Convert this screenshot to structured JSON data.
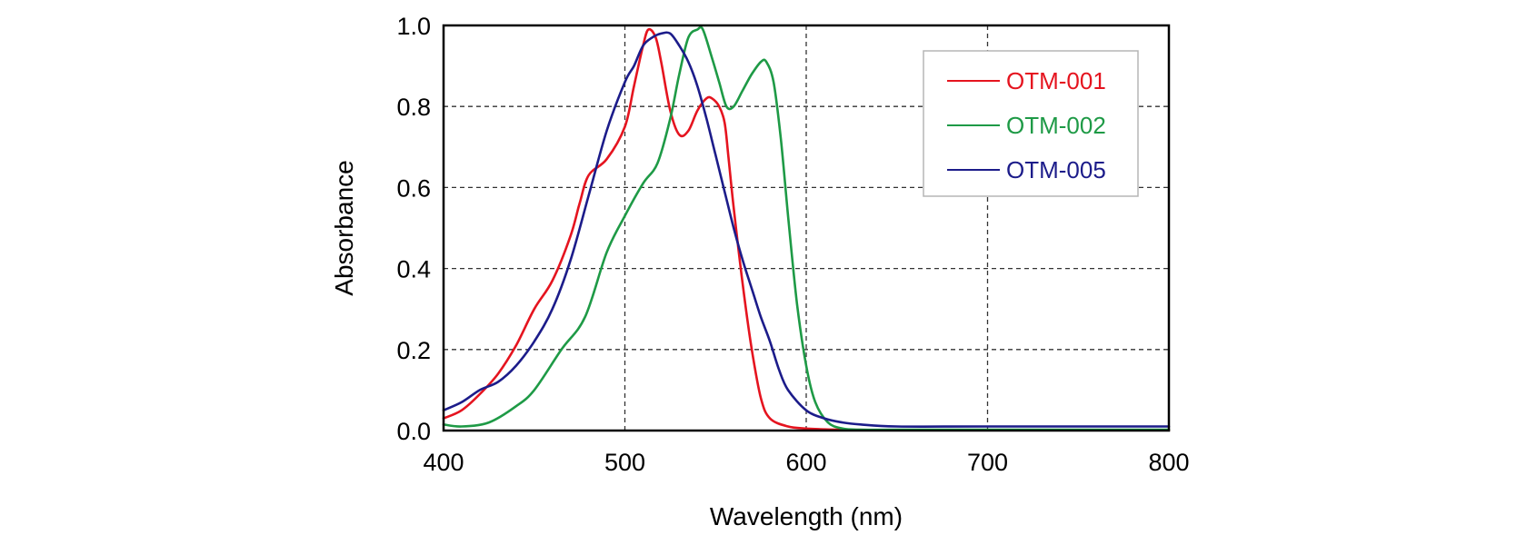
{
  "chart_data": {
    "type": "line",
    "xlabel": "Wavelength (nm)",
    "ylabel": "Absorbance",
    "xlim": [
      400,
      800
    ],
    "ylim": [
      0.0,
      1.0
    ],
    "xticks": [
      400,
      500,
      600,
      700,
      800
    ],
    "yticks": [
      0.0,
      0.2,
      0.4,
      0.6,
      0.8,
      1.0
    ],
    "xtick_labels": [
      "400",
      "500",
      "600",
      "700",
      "800"
    ],
    "ytick_labels": [
      "0.0",
      "0.2",
      "0.4",
      "0.6",
      "0.8",
      "1.0"
    ],
    "grid": true,
    "legend_position": "top-right",
    "series": [
      {
        "name": "OTM-001",
        "color": "#e5141f",
        "x": [
          400,
          410,
          420,
          430,
          440,
          450,
          460,
          470,
          475,
          480,
          490,
          500,
          505,
          510,
          513,
          517,
          520,
          525,
          530,
          535,
          540,
          545,
          548,
          552,
          555,
          557,
          560,
          565,
          570,
          575,
          580,
          590,
          600,
          610,
          620,
          650,
          700,
          800
        ],
        "y": [
          0.03,
          0.05,
          0.09,
          0.14,
          0.21,
          0.3,
          0.37,
          0.48,
          0.56,
          0.63,
          0.67,
          0.75,
          0.85,
          0.95,
          0.99,
          0.97,
          0.91,
          0.79,
          0.73,
          0.74,
          0.79,
          0.82,
          0.82,
          0.8,
          0.76,
          0.68,
          0.55,
          0.36,
          0.2,
          0.08,
          0.03,
          0.01,
          0.005,
          0.003,
          0.002,
          0.001,
          0.001,
          0.001
        ]
      },
      {
        "name": "OTM-002",
        "color": "#1e9a46",
        "x": [
          400,
          410,
          425,
          440,
          450,
          465,
          478,
          490,
          500,
          510,
          518,
          525,
          530,
          535,
          540,
          543,
          548,
          552,
          556,
          560,
          565,
          570,
          575,
          578,
          582,
          586,
          590,
          595,
          600,
          605,
          612,
          620,
          630,
          650,
          700,
          800
        ],
        "y": [
          0.015,
          0.01,
          0.02,
          0.06,
          0.1,
          0.2,
          0.28,
          0.44,
          0.53,
          0.61,
          0.66,
          0.77,
          0.88,
          0.97,
          0.99,
          0.99,
          0.92,
          0.86,
          0.8,
          0.8,
          0.84,
          0.88,
          0.91,
          0.91,
          0.86,
          0.72,
          0.53,
          0.31,
          0.16,
          0.07,
          0.02,
          0.005,
          0.002,
          0.002,
          0.002,
          0.002
        ]
      },
      {
        "name": "OTM-005",
        "color": "#1c1c8a",
        "x": [
          400,
          410,
          420,
          430,
          440,
          450,
          460,
          470,
          480,
          490,
          500,
          505,
          510,
          515,
          520,
          525,
          530,
          535,
          540,
          545,
          550,
          555,
          560,
          565,
          570,
          575,
          580,
          585,
          590,
          600,
          610,
          620,
          630,
          650,
          700,
          800
        ],
        "y": [
          0.05,
          0.07,
          0.1,
          0.12,
          0.16,
          0.22,
          0.3,
          0.42,
          0.58,
          0.74,
          0.86,
          0.9,
          0.95,
          0.97,
          0.98,
          0.98,
          0.95,
          0.91,
          0.85,
          0.77,
          0.68,
          0.59,
          0.5,
          0.42,
          0.35,
          0.28,
          0.22,
          0.15,
          0.1,
          0.05,
          0.03,
          0.02,
          0.015,
          0.01,
          0.01,
          0.01
        ]
      }
    ]
  }
}
